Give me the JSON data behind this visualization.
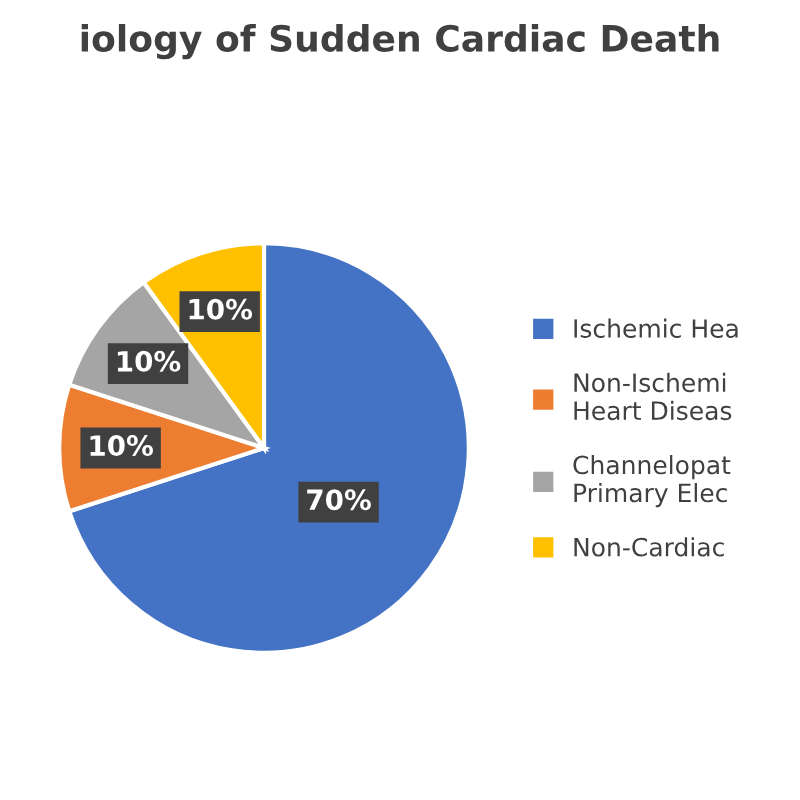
{
  "chart_data": {
    "type": "pie",
    "title": "iology of Sudden Cardiac Death",
    "categories": [
      "Ischemic Hea",
      "Non-Ischemi\nHeart Diseas",
      "Channelopat\nPrimary Elec",
      "Non-Cardiac"
    ],
    "values": [
      70,
      10,
      10,
      10
    ],
    "colors": [
      "#4472c4",
      "#ed7d31",
      "#a5a5a5",
      "#ffc000"
    ],
    "value_labels": [
      "70%",
      "10%",
      "10%",
      "10%"
    ],
    "legend": "right"
  }
}
